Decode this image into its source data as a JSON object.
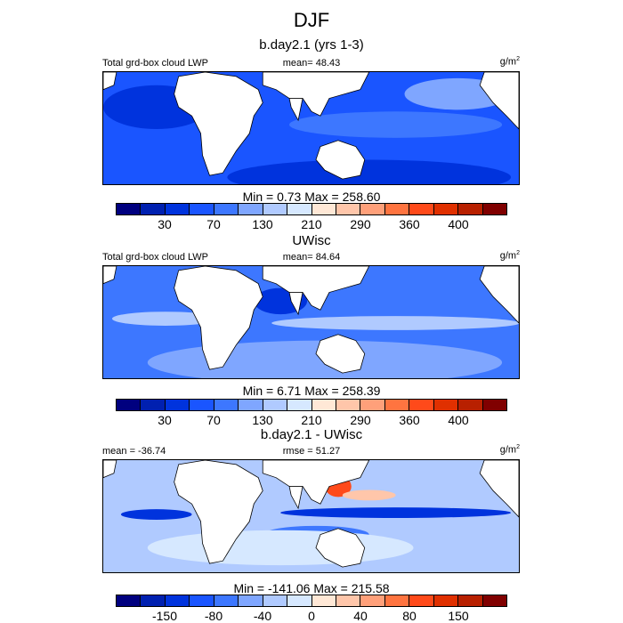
{
  "title": "DJF",
  "panels": [
    {
      "title": "b.day2.1 (yrs 1-3)",
      "left": "Total grd-box cloud LWP",
      "center": "mean=  48.43",
      "units": "g/m",
      "units_sup": "2",
      "minmax": "Min =   0.73 Max = 258.60",
      "ticks": [
        "30",
        "70",
        "130",
        "210",
        "290",
        "360",
        "400"
      ],
      "field": "base"
    },
    {
      "title": "UWisc",
      "left": "Total grd-box cloud LWP",
      "center": "mean=  84.64",
      "units": "g/m",
      "units_sup": "2",
      "minmax": "Min =   6.71 Max = 258.39",
      "ticks": [
        "30",
        "70",
        "130",
        "210",
        "290",
        "360",
        "400"
      ],
      "field": "obs"
    },
    {
      "title": "b.day2.1 - UWisc",
      "left": "mean = -36.74",
      "center": "rmse =  51.27",
      "units": "g/m",
      "units_sup": "2",
      "minmax": "Min = -141.06 Max = 215.58",
      "ticks": [
        "-150",
        "-80",
        "-40",
        "0",
        "40",
        "80",
        "150"
      ],
      "field": "diff"
    }
  ],
  "colorbar_colors": [
    "#00007f",
    "#0020b0",
    "#0033dd",
    "#1a55ff",
    "#3d77ff",
    "#7fa6ff",
    "#b0caff",
    "#d6e8ff",
    "#ffe8d6",
    "#ffc6aa",
    "#ffa07a",
    "#ff7440",
    "#ff4a1a",
    "#e03000",
    "#b82000",
    "#800000"
  ],
  "land_color": "#ffffff"
}
